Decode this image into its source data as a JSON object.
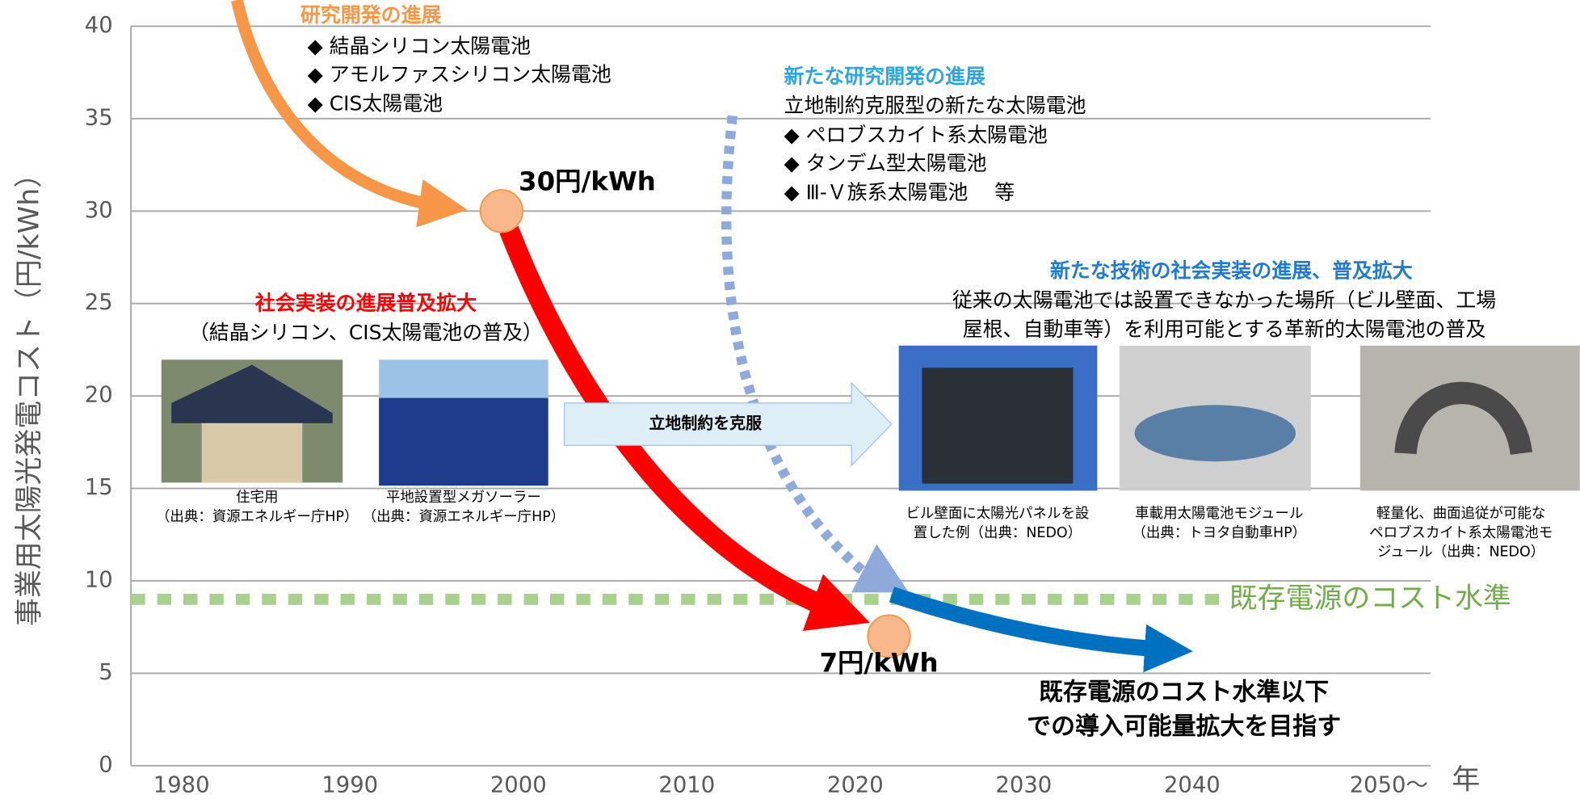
{
  "chart_data": {
    "type": "annotated",
    "ylabel": "事業用太陽光発電コスト（円/kWh）",
    "xlabel": "年",
    "ylim": [
      0,
      40
    ],
    "yticks": [
      0,
      5,
      10,
      15,
      20,
      25,
      30,
      35,
      40
    ],
    "xlim": [
      1977,
      2054
    ],
    "xticks": [
      1980,
      1990,
      2000,
      2010,
      2020,
      2030,
      2040,
      {
        "value": 2050,
        "label": "2050～"
      }
    ],
    "grid": true,
    "points": [
      {
        "x": 1999,
        "y": 30,
        "label": "30円/kWh",
        "color": "#f8b88b"
      },
      {
        "x": 2022,
        "y": 7,
        "label": "7円/kWh",
        "color": "#f8b88b"
      }
    ],
    "reference": {
      "y": 9,
      "label": "既存電源のコスト水準",
      "color": "#a9d18e"
    },
    "annotations": {
      "research": {
        "title": "研究開発の進展",
        "items": [
          "◆ 結晶シリコン太陽電池",
          "◆ アモルファスシリコン太陽電池",
          "◆ CIS太陽電池"
        ]
      },
      "new_research": {
        "title": "新たな研究開発の進展",
        "items": [
          "立地制約克服型の新たな太陽電池",
          "◆ ペロブスカイト系太陽電池",
          "◆ タンデム型太陽電池",
          "◆ Ⅲ-Ｖ族系太陽電池　 等"
        ]
      },
      "social": {
        "title": "社会実装の進展普及拡大",
        "items": [
          "（結晶シリコン、CIS太陽電池の普及）"
        ]
      },
      "new_tech": {
        "title": "新たな技術の社会実装の進展、普及拡大",
        "items": [
          "従来の太陽電池では設置できなかった場所（ビル壁面、工場",
          "屋根、自動車等）を利用可能とする革新的太陽電池の普及"
        ]
      },
      "arrow": "立地制約を克服",
      "goal": [
        "既存電源のコスト水準以下",
        "での導入可能量拡大を目指す"
      ],
      "captions": [
        [
          "住宅用",
          "（出典：資源エネルギー庁HP）"
        ],
        [
          "平地設置型メガソーラー",
          "（出典：資源エネルギー庁HP）"
        ],
        [
          "ビル壁面に太陽光パネルを設",
          "置した例（出典：NEDO）"
        ],
        [
          "車載用太陽電池モジュール",
          "（出典：トヨタ自動車HP）"
        ],
        [
          "軽量化、曲面追従が可能な",
          "ペロブスカイト系太陽電池モ",
          "ジュール（出典：NEDO）"
        ]
      ]
    }
  }
}
